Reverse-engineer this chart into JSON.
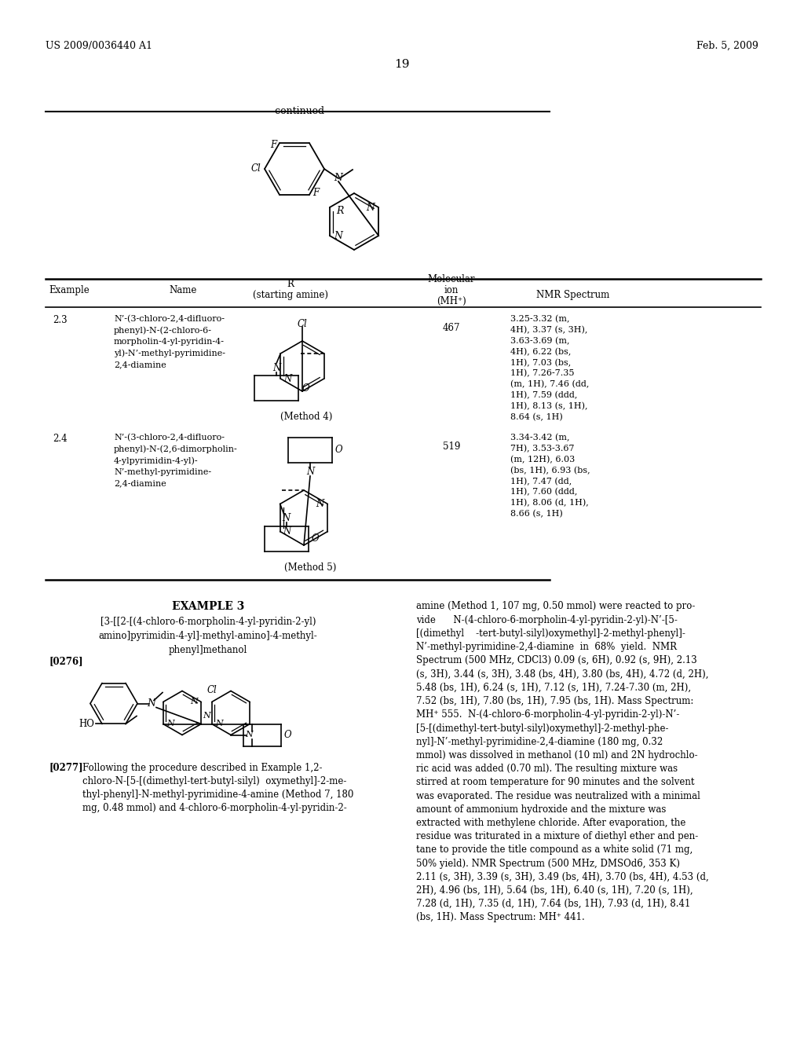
{
  "background_color": "#ffffff",
  "header_left": "US 2009/0036440 A1",
  "header_right": "Feb. 5, 2009",
  "page_number": "19",
  "continued_label": "-continued",
  "example3_title": "EXAMPLE 3",
  "example3_subtitle": "[3-[[2-[(4-chloro-6-morpholin-4-yl-pyridin-2-yl)\namino]pyrimidin-4-yl]-methyl-amino]-4-methyl-\nphenyl]methanol",
  "example3_para_num": "[0276]",
  "example3_right_text1": "amine (Method 1, 107 mg, 0.50 mmol) were reacted to pro-\nvide      N-(4-chloro-6-morpholin-4-yl-pyridin-2-yl)-N’-[5-\n[(dimethyl    -tert-butyl-silyl)oxymethyl]-2-methyl-phenyl]-\nN’-methyl-pyrimidine-2,4-diamine  in  68%  yield.  NMR\nSpectrum (500 MHz, CDCl3) 0.09 (s, 6H), 0.92 (s, 9H), 2.13\n(s, 3H), 3.44 (s, 3H), 3.48 (bs, 4H), 3.80 (bs, 4H), 4.72 (d, 2H),\n5.48 (bs, 1H), 6.24 (s, 1H), 7.12 (s, 1H), 7.24-7.30 (m, 2H),\n7.52 (bs, 1H), 7.80 (bs, 1H), 7.95 (bs, 1H). Mass Spectrum:\nMH⁺ 555.  N-(4-chloro-6-morpholin-4-yl-pyridin-2-yl)-N’-",
  "example3_left_text": "Following the procedure described in Example 1,2-\nchloro-N-[5-[(dimethyl-tert-butyl-silyl)  oxymethyl]-2-me-\nthyl-phenyl]-N-methyl-pyrimidine-4-amine (Method 7, 180\nmg, 0.48 mmol) and 4-chloro-6-morpholin-4-yl-pyridin-2-",
  "para0277": "[0277]",
  "para0277_text": "Following the procedure described in Example 1,2-\nchloro-N-[5-[(dimethyl-tert-butyl-silyl)  oxymethyl]-2-me-\nthyl-phenyl]-N-methyl-pyrimidine-4-amine (Method 7, 180\nmg, 0.48 mmol) and 4-chloro-6-morpholin-4-yl-pyridin-2-",
  "bottom_right_text": "[5-[(dimethyl-tert-butyl-silyl)oxymethyl]-2-methyl-phe-\nnyl]-N’-methyl-pyrimidine-2,4-diamine (180 mg, 0.32\nmmol) was dissolved in methanol (10 ml) and 2N hydrochlo-\nric acid was added (0.70 ml). The resulting mixture was\nstirred at room temperature for 90 minutes and the solvent\nwas evaporated. The residue was neutralized with a minimal\namount of ammonium hydroxide and the mixture was\nextracted with methylene chloride. After evaporation, the\nresidue was triturated in a mixture of diethyl ether and pen-\ntane to provide the title compound as a white solid (71 mg,\n50% yield). NMR Spectrum (500 MHz, DMSOd6, 353 K)\n2.11 (s, 3H), 3.39 (s, 3H), 3.49 (bs, 4H), 3.70 (bs, 4H), 4.53 (d,\n2H), 4.96 (bs, 1H), 5.64 (bs, 1H), 6.40 (s, 1H), 7.20 (s, 1H),\n7.28 (d, 1H), 7.35 (d, 1H), 7.64 (bs, 1H), 7.93 (d, 1H), 8.41\n(bs, 1H). Mass Spectrum: MH⁺ 441."
}
